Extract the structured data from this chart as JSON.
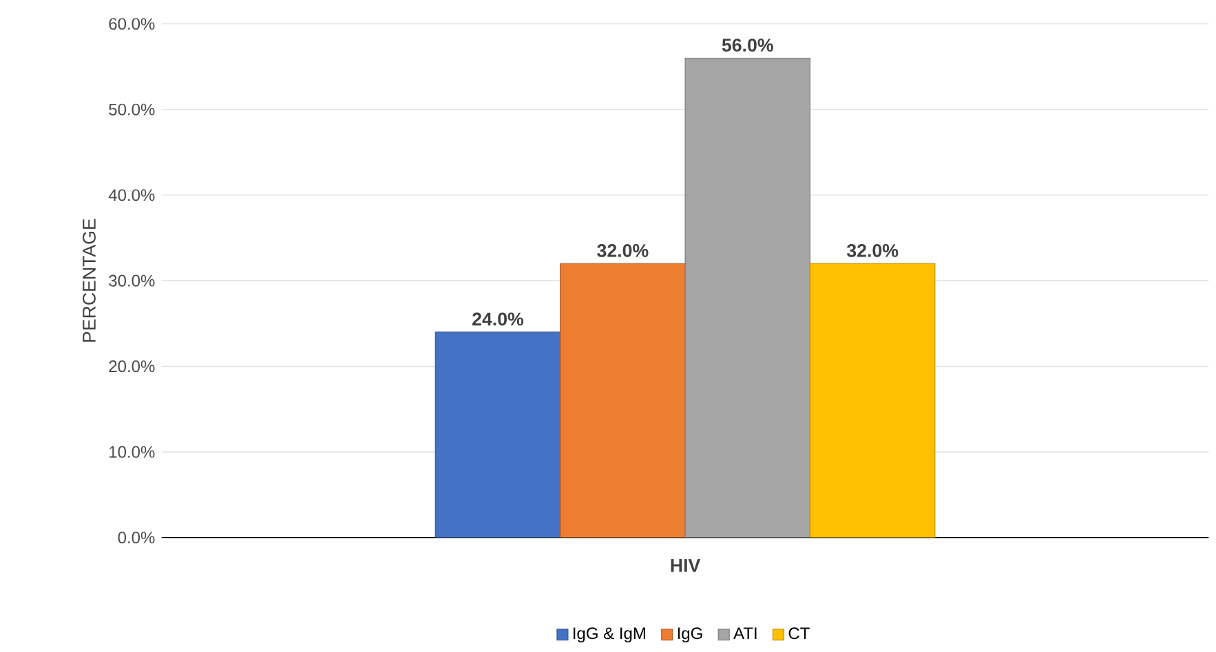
{
  "chart_data": {
    "type": "bar",
    "ylabel": "PERCENTAGE",
    "categories": [
      "HIV"
    ],
    "series": [
      {
        "name": "IgG & IgM",
        "color": "#4472c4",
        "values": [
          24.0
        ],
        "value_labels": [
          "24.0%"
        ]
      },
      {
        "name": "IgG",
        "color": "#ed7d31",
        "values": [
          32.0
        ],
        "value_labels": [
          "32.0%"
        ]
      },
      {
        "name": "ATI",
        "color": "#a5a5a5",
        "values": [
          56.0
        ],
        "value_labels": [
          "56.0%"
        ]
      },
      {
        "name": "CT",
        "color": "#ffc000",
        "values": [
          32.0
        ],
        "value_labels": [
          "32.0%"
        ]
      }
    ],
    "ylim": [
      0,
      60
    ],
    "yticks": [
      {
        "value": 0,
        "label": "0.0%"
      },
      {
        "value": 10,
        "label": "10.0%"
      },
      {
        "value": 20,
        "label": "20.0%"
      },
      {
        "value": 30,
        "label": "30.0%"
      },
      {
        "value": 40,
        "label": "40.0%"
      },
      {
        "value": 50,
        "label": "50.0%"
      },
      {
        "value": 60,
        "label": "60.0%"
      }
    ],
    "grid": "y",
    "legend": "bottom"
  }
}
